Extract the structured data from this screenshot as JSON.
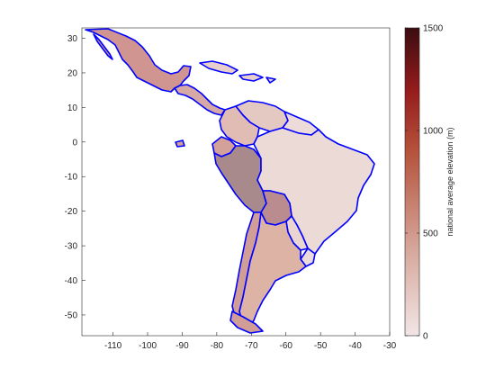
{
  "map": {
    "title": "",
    "xlim": [
      -119,
      -30
    ],
    "ylim": [
      -56,
      33
    ],
    "x_ticks": [
      -110,
      -100,
      -90,
      -80,
      -70,
      -60,
      -50,
      -40,
      -30
    ],
    "y_ticks": [
      30,
      20,
      10,
      0,
      -10,
      -20,
      -30,
      -40,
      -50
    ],
    "x_tick_labels": [
      "-110",
      "-100",
      "-90",
      "-80",
      "-70",
      "-60",
      "-50",
      "-40",
      "-30"
    ],
    "y_tick_labels": [
      "30",
      "20",
      "10",
      "0",
      "-10",
      "-20",
      "-30",
      "-40",
      "-50"
    ],
    "border_color": "#0000ff",
    "colormap": "reds-light-to-dark"
  },
  "colorbar": {
    "label": "national average elevation (m)",
    "range": [
      0,
      1500
    ],
    "ticks": [
      0,
      500,
      1000,
      1500
    ],
    "tick_labels": [
      "0",
      "500",
      "1000",
      "1500"
    ],
    "stops": [
      "#f2e6e6",
      "#d4a295",
      "#b5523c",
      "#951b1b",
      "#3a0d10"
    ]
  },
  "chart_data": {
    "type": "choropleth",
    "value_label": "national average elevation (m)",
    "regions": [
      {
        "name": "Mexico",
        "fill": "#d09590"
      },
      {
        "name": "Central America",
        "fill": "#d6a8a6"
      },
      {
        "name": "Caribbean",
        "fill": "#e8cfcc"
      },
      {
        "name": "Venezuela",
        "fill": "#e4c8c2"
      },
      {
        "name": "Colombia",
        "fill": "#e0bcb5"
      },
      {
        "name": "Guyana Shield",
        "fill": "#ecdbd8"
      },
      {
        "name": "Ecuador",
        "fill": "#d3a09a"
      },
      {
        "name": "Peru",
        "fill": "#a98a8c"
      },
      {
        "name": "Brazil",
        "fill": "#ecdad6"
      },
      {
        "name": "Bolivia",
        "fill": "#bb8c8f"
      },
      {
        "name": "Paraguay",
        "fill": "#ebd5d1"
      },
      {
        "name": "Uruguay",
        "fill": "#ecdcd9"
      },
      {
        "name": "Chile",
        "fill": "#d19e97"
      },
      {
        "name": "Argentina",
        "fill": "#dcb3a5"
      }
    ]
  }
}
